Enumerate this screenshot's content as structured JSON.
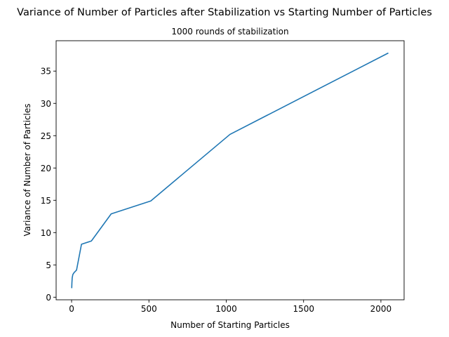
{
  "chart_data": {
    "type": "line",
    "title": "Variance of Number of Particles after Stabilization vs Starting Number of Particles",
    "subtitle": "1000 rounds of stabilization",
    "xlabel": "Number of Starting Particles",
    "ylabel": "Variance of Number of Particles",
    "xlim": [
      -100,
      2150
    ],
    "ylim": [
      -0.4,
      39.7
    ],
    "xticks": [
      0,
      500,
      1000,
      1500,
      2000
    ],
    "yticks": [
      0,
      5,
      10,
      15,
      20,
      25,
      30,
      35
    ],
    "grid": false,
    "series": [
      {
        "color": "#1f77b4",
        "x": [
          1,
          2,
          4,
          8,
          16,
          32,
          64,
          128,
          256,
          512,
          1024,
          2048
        ],
        "y": [
          1.4,
          2.2,
          3.0,
          3.5,
          3.8,
          4.2,
          8.2,
          8.7,
          12.9,
          14.9,
          25.2,
          37.8
        ]
      }
    ]
  }
}
